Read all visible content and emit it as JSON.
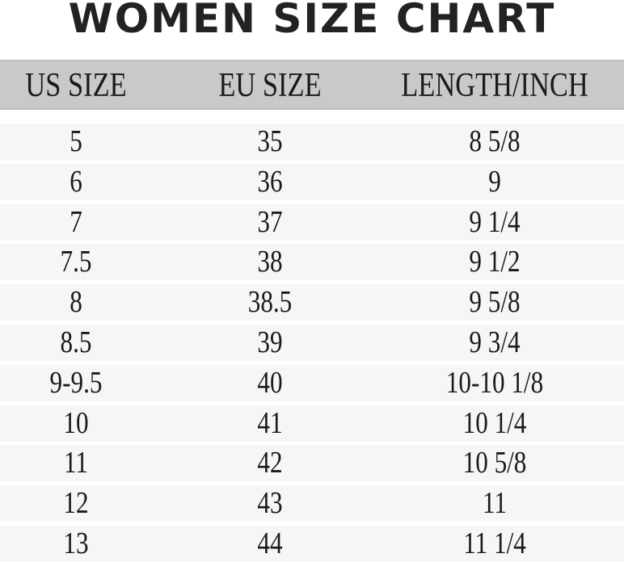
{
  "title": "WOMEN SIZE CHART",
  "chart_data": {
    "type": "table",
    "title": "WOMEN SIZE CHART",
    "columns": [
      "US SIZE",
      "EU SIZE",
      "LENGTH/INCH"
    ],
    "rows": [
      [
        "5",
        "35",
        "8 5/8"
      ],
      [
        "6",
        "36",
        "9"
      ],
      [
        "7",
        "37",
        "9 1/4"
      ],
      [
        "7.5",
        "38",
        "9 1/2"
      ],
      [
        "8",
        "38.5",
        "9 5/8"
      ],
      [
        "8.5",
        "39",
        "9 3/4"
      ],
      [
        "9-9.5",
        "40",
        "10-10 1/8"
      ],
      [
        "10",
        "41",
        "10 1/4"
      ],
      [
        "11",
        "42",
        "10 5/8"
      ],
      [
        "12",
        "43",
        "11"
      ],
      [
        "13",
        "44",
        "11 1/4"
      ]
    ],
    "colors": {
      "header_bg": "#c9c9c9",
      "row_bg": "#f6f6f4",
      "text": "#1a1a1a"
    }
  }
}
